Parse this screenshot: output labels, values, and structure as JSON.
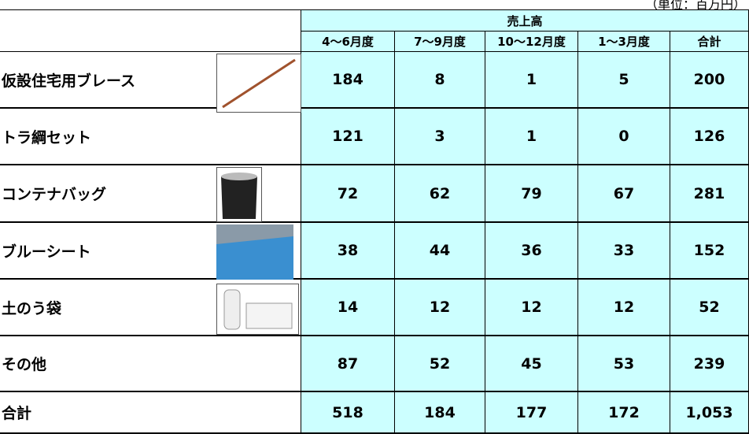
{
  "header": {
    "unit": "（単位：百万円）",
    "group": "売上高",
    "columns": [
      "4～6月度",
      "7～9月度",
      "10～12月度",
      "1～3月度",
      "合計"
    ]
  },
  "table": {
    "rows": [
      {
        "label": "仮設住宅用ブレース",
        "values": [
          184,
          8,
          1,
          5,
          200
        ]
      },
      {
        "label": "トラ綱セット",
        "values": [
          121,
          3,
          1,
          0,
          126
        ]
      },
      {
        "label": "コンテナバッグ",
        "values": [
          72,
          62,
          79,
          67,
          281
        ]
      },
      {
        "label": "ブルーシート",
        "values": [
          38,
          44,
          36,
          33,
          152
        ]
      },
      {
        "label": "土のう袋",
        "values": [
          14,
          12,
          12,
          12,
          52
        ]
      },
      {
        "label": "その他",
        "values": [
          87,
          52,
          45,
          53,
          239
        ]
      },
      {
        "label": "合計",
        "values": [
          518,
          184,
          177,
          172,
          "1,053"
        ]
      }
    ]
  }
}
